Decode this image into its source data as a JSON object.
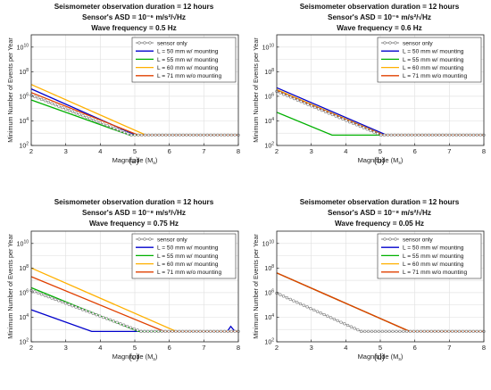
{
  "figure": {
    "panels": [
      {
        "caption": "(a)",
        "title_lines": [
          "Seismometer observation duration = 12 hours",
          "Sensor's ASD = 10⁻⁶ m/s²/√Hz",
          "Wave frequency = 0.5 Hz"
        ]
      },
      {
        "caption": "(b)",
        "title_lines": [
          "Seismometer observation duration = 12 hours",
          "Sensor's ASD = 10⁻⁶ m/s²/√Hz",
          "Wave frequency = 0.6 Hz"
        ]
      },
      {
        "caption": "(c)",
        "title_lines": [
          "Seismometer observation duration = 12 hours",
          "Sensor's ASD = 10⁻⁸ m/s²/√Hz",
          "Wave frequency = 0.75 Hz"
        ]
      },
      {
        "caption": "(d)",
        "title_lines": [
          "Seismometer observation duration = 12 hours",
          "Sensor's ASD = 10⁻⁸ m/s²/√Hz",
          "Wave frequency = 0.05 Hz"
        ]
      }
    ]
  },
  "colors": {
    "sensor_only": "#808080",
    "L50": "#0000cc",
    "L55": "#00b000",
    "L60": "#ffb000",
    "L71": "#e04000"
  },
  "chart_data": [
    {
      "type": "line",
      "title": "Seismometer observation duration = 12 hours / Sensor's ASD = 10^-6 m/s^2/√Hz / Wave frequency = 0.5 Hz",
      "xlabel": "Magnitude (M_s)",
      "ylabel": "Minimum Number of Events per Year",
      "xlim": [
        2,
        8
      ],
      "ylim": [
        100,
        100000000000
      ],
      "yscale": "log",
      "x_ticks": [
        "2",
        "3",
        "4",
        "5",
        "6",
        "7",
        "8"
      ],
      "y_ticks": [
        "10^2",
        "10^4",
        "10^6",
        "10^8",
        "10^10"
      ],
      "grid": true,
      "legend_position": "top-right",
      "series": [
        {
          "name": "sensor only",
          "x": [
            2,
            4.9,
            8
          ],
          "y": [
            1200000,
            700,
            700
          ]
        },
        {
          "name": "L = 50 mm w/ mounting",
          "x": [
            2,
            5.02,
            8
          ],
          "y": [
            4000000,
            700,
            700
          ]
        },
        {
          "name": "L = 55 mm w/ mounting",
          "x": [
            2,
            4.85,
            8
          ],
          "y": [
            500000,
            700,
            700
          ]
        },
        {
          "name": "L = 60 mm w/ mounting",
          "x": [
            2,
            5.32,
            8
          ],
          "y": [
            9000000,
            700,
            700
          ]
        },
        {
          "name": "L = 71 mm w/o mounting",
          "x": [
            2,
            5.1,
            8
          ],
          "y": [
            2000000,
            700,
            700
          ]
        }
      ]
    },
    {
      "type": "line",
      "title": "Seismometer observation duration = 12 hours / Sensor's ASD = 10^-6 m/s^2/√Hz / Wave frequency = 0.6 Hz",
      "xlabel": "Magnitude (M_s)",
      "ylabel": "Minimum Number of Events per Year",
      "xlim": [
        2,
        8
      ],
      "ylim": [
        100,
        100000000000
      ],
      "yscale": "log",
      "x_ticks": [
        "2",
        "3",
        "4",
        "5",
        "6",
        "7",
        "8"
      ],
      "y_ticks": [
        "10^2",
        "10^4",
        "10^6",
        "10^8",
        "10^10"
      ],
      "grid": true,
      "legend_position": "top-right",
      "series": [
        {
          "name": "sensor only",
          "x": [
            2,
            5.02,
            8
          ],
          "y": [
            2500000,
            700,
            700
          ]
        },
        {
          "name": "L = 50 mm w/ mounting",
          "x": [
            2,
            5.18,
            8
          ],
          "y": [
            5000000,
            700,
            700
          ]
        },
        {
          "name": "L = 55 mm w/ mounting",
          "x": [
            2,
            3.6,
            8
          ],
          "y": [
            50000,
            700,
            700
          ]
        },
        {
          "name": "L = 60 mm w/ mounting",
          "x": [
            2,
            5.1,
            8
          ],
          "y": [
            3500000,
            700,
            700
          ]
        },
        {
          "name": "L = 71 mm w/o mounting",
          "x": [
            2,
            5.08,
            8
          ],
          "y": [
            3000000,
            700,
            700
          ]
        }
      ]
    },
    {
      "type": "line",
      "title": "Seismometer observation duration = 12 hours / Sensor's ASD = 10^-8 m/s^2/√Hz / Wave frequency = 0.75 Hz",
      "xlabel": "Magnitude (M_s)",
      "ylabel": "Minimum Number of Events per Year",
      "xlim": [
        2,
        8
      ],
      "ylim": [
        100,
        100000000000
      ],
      "yscale": "log",
      "x_ticks": [
        "2",
        "3",
        "4",
        "5",
        "6",
        "7",
        "8"
      ],
      "y_ticks": [
        "10^2",
        "10^4",
        "10^6",
        "10^8",
        "10^10"
      ],
      "grid": true,
      "legend_position": "top-right",
      "series": [
        {
          "name": "sensor only",
          "x": [
            2,
            5.18,
            8
          ],
          "y": [
            1500000,
            700,
            700
          ]
        },
        {
          "name": "L = 50 mm w/ mounting",
          "x": [
            2,
            3.75,
            7.68,
            7.78,
            7.9,
            8
          ],
          "y": [
            40000,
            700,
            700,
            1800,
            700,
            700
          ]
        },
        {
          "name": "L = 55 mm w/ mounting",
          "x": [
            2,
            5.1,
            8
          ],
          "y": [
            2500000,
            700,
            700
          ]
        },
        {
          "name": "L = 60 mm w/ mounting",
          "x": [
            2,
            6.2,
            8
          ],
          "y": [
            100000000,
            700,
            700
          ]
        },
        {
          "name": "L = 71 mm w/o mounting",
          "x": [
            2,
            5.85,
            8
          ],
          "y": [
            20000000,
            700,
            700
          ]
        }
      ]
    },
    {
      "type": "line",
      "title": "Seismometer observation duration = 12 hours / Sensor's ASD = 10^-8 m/s^2/√Hz / Wave frequency = 0.05 Hz",
      "xlabel": "Magnitude (M_s)",
      "ylabel": "Minimum Number of Events per Year",
      "xlim": [
        2,
        8
      ],
      "ylim": [
        100,
        100000000000
      ],
      "yscale": "log",
      "x_ticks": [
        "2",
        "3",
        "4",
        "5",
        "6",
        "7",
        "8"
      ],
      "y_ticks": [
        "10^2",
        "10^4",
        "10^6",
        "10^8",
        "10^10"
      ],
      "grid": true,
      "legend_position": "top-right",
      "series": [
        {
          "name": "sensor only",
          "x": [
            2,
            4.45,
            8
          ],
          "y": [
            900000,
            700,
            700
          ]
        },
        {
          "name": "L = 50 mm w/ mounting",
          "x": [
            2,
            5.85,
            8
          ],
          "y": [
            40000000,
            700,
            700
          ]
        },
        {
          "name": "L = 55 mm w/ mounting",
          "x": [
            2,
            5.85,
            8
          ],
          "y": [
            40000000,
            700,
            700
          ]
        },
        {
          "name": "L = 60 mm w/ mounting",
          "x": [
            2,
            5.85,
            8
          ],
          "y": [
            40000000,
            700,
            700
          ]
        },
        {
          "name": "L = 71 mm w/o mounting",
          "x": [
            2,
            5.85,
            8
          ],
          "y": [
            40000000,
            700,
            700
          ]
        }
      ]
    }
  ]
}
